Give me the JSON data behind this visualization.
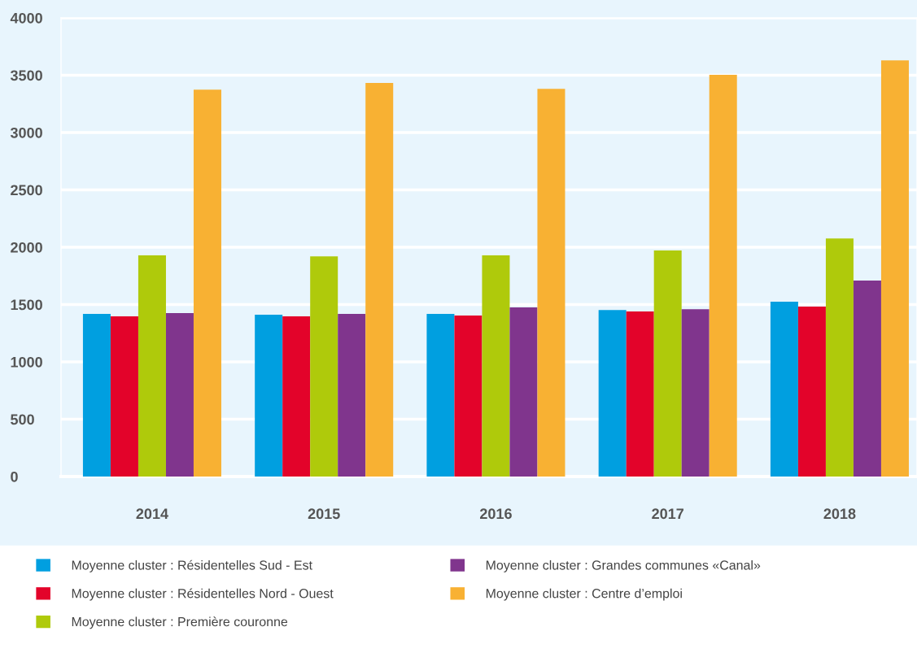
{
  "chart_data": {
    "type": "bar",
    "categories": [
      "2014",
      "2015",
      "2016",
      "2017",
      "2018"
    ],
    "series": [
      {
        "name": "Moyenne cluster : Résidentelles Sud - Est",
        "color": "#009fe0",
        "values": [
          1418,
          1411,
          1418,
          1453,
          1524
        ]
      },
      {
        "name": "Moyenne cluster : Résidentelles Nord - Ouest",
        "color": "#e3032a",
        "values": [
          1397,
          1397,
          1404,
          1439,
          1482
        ]
      },
      {
        "name": "Moyenne cluster : Première couronne",
        "color": "#afca0b",
        "values": [
          1929,
          1921,
          1929,
          1971,
          2077
        ]
      },
      {
        "name": "Moyenne cluster : Grandes communes «Canal»",
        "color": "#80358d",
        "values": [
          1425,
          1418,
          1475,
          1460,
          1709
        ]
      },
      {
        "name": "Moyenne cluster : Centre d’emploi",
        "color": "#f8b133",
        "values": [
          3375,
          3432,
          3382,
          3503,
          3630
        ]
      }
    ],
    "ylim": [
      0,
      4000
    ],
    "yticks": [
      0,
      500,
      1000,
      1500,
      2000,
      2500,
      3000,
      3500,
      4000
    ],
    "grid": "y",
    "legend": "bottom"
  }
}
